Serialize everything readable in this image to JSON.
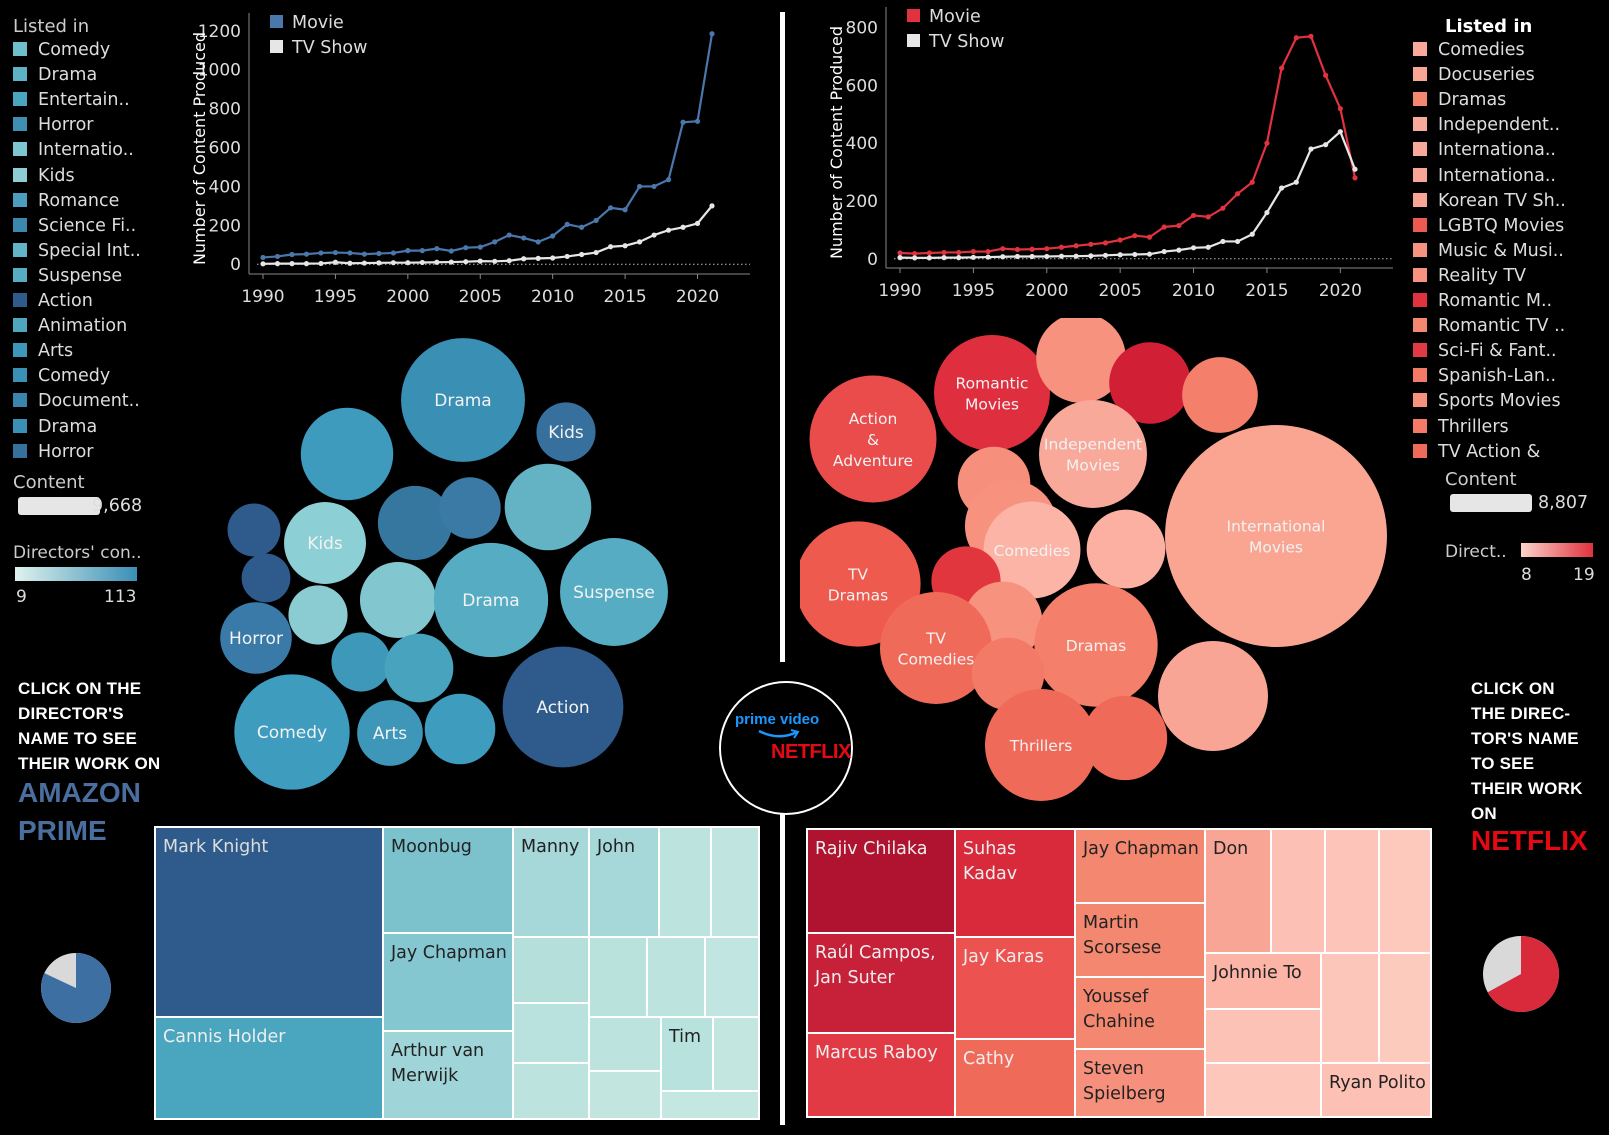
{
  "prime": {
    "legend_title": "Listed in",
    "legend_items": [
      {
        "label": "Comedy",
        "color": "#6ebfcb"
      },
      {
        "label": "Drama",
        "color": "#5db3c4"
      },
      {
        "label": "Entertain..",
        "color": "#4aa5bf"
      },
      {
        "label": "Horror",
        "color": "#3f8fb4"
      },
      {
        "label": "Internatio..",
        "color": "#7cc7cf"
      },
      {
        "label": "Kids",
        "color": "#8dcdd3"
      },
      {
        "label": "Romance",
        "color": "#4a9dbd"
      },
      {
        "label": "Science Fi..",
        "color": "#3c87ad"
      },
      {
        "label": "Special Int..",
        "color": "#62b5c6"
      },
      {
        "label": "Suspense",
        "color": "#56adc3"
      },
      {
        "label": "Action",
        "color": "#2e5b8c"
      },
      {
        "label": "Animation",
        "color": "#4fa7bf"
      },
      {
        "label": "Arts",
        "color": "#3e96b8"
      },
      {
        "label": "Comedy",
        "color": "#3a90b6"
      },
      {
        "label": "Document..",
        "color": "#3b84ad"
      },
      {
        "label": "Drama",
        "color": "#3b8fb5"
      },
      {
        "label": "Horror",
        "color": "#36719e"
      }
    ],
    "content_title": "Content",
    "content_value": "9,668",
    "directors_title": "Directors' con..",
    "directors_min": "9",
    "directors_max": "113",
    "cta_lines": [
      "CLICK ON THE",
      "DIRECTOR'S",
      "NAME TO SEE",
      "THEIR WORK ON"
    ],
    "brand_lines": [
      "AMAZON",
      "PRIME"
    ],
    "brand_color": "#4a6f9e",
    "accent": "#3e6fa3",
    "bubbles": [
      {
        "label": "Drama",
        "value": 113,
        "color": "#3a8fb5"
      },
      {
        "label": "",
        "value": 60,
        "color": "#3f9bbd"
      },
      {
        "label": "Kids",
        "value": 22,
        "color": "#37709c"
      },
      {
        "label": "Kids",
        "value": 46,
        "color": "#8ccfd5"
      },
      {
        "label": "",
        "value": 37,
        "color": "#36779f"
      },
      {
        "label": "",
        "value": 24,
        "color": "#3a7aa5"
      },
      {
        "label": "",
        "value": 52,
        "color": "#63b3c5"
      },
      {
        "label": "",
        "value": 17,
        "color": "#2e5b8c"
      },
      {
        "label": "",
        "value": 14,
        "color": "#2e5b8c"
      },
      {
        "label": "",
        "value": 22,
        "color": "#8bcbd2"
      },
      {
        "label": "",
        "value": 39,
        "color": "#82c6cf"
      },
      {
        "label": "Drama",
        "value": 95,
        "color": "#56adc3"
      },
      {
        "label": "Suspense",
        "value": 84,
        "color": "#56adc3"
      },
      {
        "label": "Horror",
        "value": 34,
        "color": "#3a7aa8"
      },
      {
        "label": "",
        "value": 22,
        "color": "#3e98ba"
      },
      {
        "label": "",
        "value": 31,
        "color": "#48a3bf"
      },
      {
        "label": "Comedy",
        "value": 97,
        "color": "#3e9cbf"
      },
      {
        "label": "Arts",
        "value": 28,
        "color": "#3e96b8"
      },
      {
        "label": "",
        "value": 33,
        "color": "#3e9cbf"
      },
      {
        "label": "Action",
        "value": 107,
        "color": "#2e5b8c"
      }
    ],
    "treemap": [
      {
        "label": "Mark Knight",
        "color": "#2e5b8c",
        "text": "#ddd"
      },
      {
        "label": "Cannis Holder",
        "color": "#4aa5bf",
        "text": "#eee"
      },
      {
        "label": "Moonbug",
        "color": "#7cc2cd",
        "text": "#222"
      },
      {
        "label": "Jay Chapman",
        "color": "#85c7d0",
        "text": "#222"
      },
      {
        "label": "Arthur van Merwijk",
        "color": "#9fd4d8",
        "text": "#222"
      },
      {
        "label": "Manny",
        "color": "#a6d7d9",
        "text": "#222"
      },
      {
        "label": "John",
        "color": "#a6d7d9",
        "text": "#222"
      },
      {
        "label": "Tim",
        "color": "#b8e2de",
        "text": "#222"
      }
    ],
    "pie": {
      "share": 0.82,
      "color": "#3e6fa3",
      "rest": "#d9d9d9"
    }
  },
  "netflix": {
    "legend_title": "Listed in",
    "legend_items": [
      {
        "label": "Comedies",
        "color": "#f9a99a"
      },
      {
        "label": "Docuseries",
        "color": "#f8a596"
      },
      {
        "label": "Dramas",
        "color": "#f4876f"
      },
      {
        "label": "Independent..",
        "color": "#f9a99a"
      },
      {
        "label": "Internationa..",
        "color": "#f9a99a"
      },
      {
        "label": "Internationa..",
        "color": "#f8a596"
      },
      {
        "label": "Korean TV Sh..",
        "color": "#f8a596"
      },
      {
        "label": "LGBTQ Movies",
        "color": "#ef5a50"
      },
      {
        "label": "Music & Musi..",
        "color": "#f7927e"
      },
      {
        "label": "Reality TV",
        "color": "#f7927e"
      },
      {
        "label": "Romantic M..",
        "color": "#e0323f"
      },
      {
        "label": "Romantic TV ..",
        "color": "#f4876f"
      },
      {
        "label": "Sci-Fi & Fant..",
        "color": "#e23a45"
      },
      {
        "label": "Spanish-Lan..",
        "color": "#f27a66"
      },
      {
        "label": "Sports Movies",
        "color": "#f7927e"
      },
      {
        "label": "Thrillers",
        "color": "#f27a66"
      },
      {
        "label": "TV Action &",
        "color": "#f06a5a"
      }
    ],
    "content_title": "Content",
    "content_value": "8,807",
    "directors_title": "Direct..",
    "directors_min": "8",
    "directors_max": "19",
    "cta_lines": [
      "CLICK ON",
      "THE DIREC-",
      "TOR'S NAME",
      "TO SEE",
      "THEIR WORK",
      "ON"
    ],
    "brand_lines": [
      "NETFLIX"
    ],
    "brand_color": "#e50914",
    "accent": "#e0323f",
    "bubbles": [
      {
        "label": "Action & Adventure",
        "value": 17,
        "color": "#ea4b4b"
      },
      {
        "label": "Romantic Movies",
        "value": 16,
        "color": "#df2e3e"
      },
      {
        "label": "",
        "value": 12,
        "color": "#f7927e"
      },
      {
        "label": "",
        "value": 19,
        "color": "#d11f35"
      },
      {
        "label": "",
        "value": 10,
        "color": "#f4806c"
      },
      {
        "label": "Independent Movies",
        "value": 14,
        "color": "#f9a99a"
      },
      {
        "label": "",
        "value": 9,
        "color": "#f6907c"
      },
      {
        "label": "",
        "value": 12,
        "color": "#f7927e"
      },
      {
        "label": "International Movies",
        "value": 8,
        "color": "#f9a592"
      },
      {
        "label": "Comedies",
        "value": 13,
        "color": "#fbb4a6"
      },
      {
        "label": "",
        "value": 10,
        "color": "#fbb0a2"
      },
      {
        "label": "TV Dramas",
        "value": 15,
        "color": "#ee5a4e"
      },
      {
        "label": "",
        "value": 17,
        "color": "#e2363f"
      },
      {
        "label": "",
        "value": 10,
        "color": "#f7927e"
      },
      {
        "label": "TV Comedies",
        "value": 14,
        "color": "#f06a5a"
      },
      {
        "label": "Dramas",
        "value": 12,
        "color": "#f4806c"
      },
      {
        "label": "",
        "value": 11,
        "color": "#f27a66"
      },
      {
        "label": "",
        "value": 9,
        "color": "#f8a596"
      },
      {
        "label": "Thrillers",
        "value": 12,
        "color": "#f06a5a"
      },
      {
        "label": "",
        "value": 11,
        "color": "#f06a5a"
      }
    ],
    "treemap": [
      {
        "label": "Rajiv Chilaka",
        "color": "#b0132f",
        "text": "#eee"
      },
      {
        "label": "Suhas Kadav",
        "color": "#d92a3c",
        "text": "#eee"
      },
      {
        "label": "Raúl Campos, Jan Suter",
        "color": "#c7213a",
        "text": "#eee"
      },
      {
        "label": "Jay Karas",
        "color": "#ec5250",
        "text": "#eee"
      },
      {
        "label": "Marcus Raboy",
        "color": "#e23a45",
        "text": "#eee"
      },
      {
        "label": "Cathy",
        "color": "#f06a5a",
        "text": "#eee"
      },
      {
        "label": "Jay Chapman",
        "color": "#f4876f",
        "text": "#222"
      },
      {
        "label": "Martin Scorsese",
        "color": "#f4876f",
        "text": "#222"
      },
      {
        "label": "Youssef Chahine",
        "color": "#f4876f",
        "text": "#222"
      },
      {
        "label": "Steven Spielberg",
        "color": "#f6907c",
        "text": "#222"
      },
      {
        "label": "Don",
        "color": "#f8a596",
        "text": "#222"
      },
      {
        "label": "Johnnie To",
        "color": "#fbb4a6",
        "text": "#222"
      },
      {
        "label": "Ryan Polito",
        "color": "#fcc0b4",
        "text": "#222"
      }
    ],
    "pie": {
      "share": 0.67,
      "color": "#d92a3c",
      "rest": "#d9d9d9"
    }
  },
  "logo": {
    "prime_text": "prime video",
    "netflix_text": "NETFLIX"
  },
  "chart_data": [
    {
      "type": "line",
      "ylabel": "Number of Content Produced",
      "x": [
        1990,
        1991,
        1992,
        1993,
        1994,
        1995,
        1996,
        1997,
        1998,
        1999,
        2000,
        2001,
        2002,
        2003,
        2004,
        2005,
        2006,
        2007,
        2008,
        2009,
        2010,
        2011,
        2012,
        2013,
        2014,
        2015,
        2016,
        2017,
        2018,
        2019,
        2020,
        2021
      ],
      "xticks": [
        1990,
        1995,
        2000,
        2005,
        2010,
        2015,
        2020
      ],
      "yticks": [
        0,
        200,
        400,
        600,
        800,
        1000,
        1200
      ],
      "ylim": [
        -40,
        1230
      ],
      "legend_position": "top-left",
      "series": [
        {
          "name": "Movie",
          "color": "#4a78ad",
          "values": [
            35,
            40,
            50,
            52,
            58,
            60,
            58,
            52,
            55,
            58,
            70,
            70,
            80,
            68,
            85,
            88,
            115,
            150,
            135,
            115,
            145,
            205,
            190,
            225,
            290,
            280,
            400,
            400,
            435,
            730,
            735,
            1185
          ]
        },
        {
          "name": "TV Show",
          "color": "#e6e6e6",
          "values": [
            2,
            3,
            3,
            3,
            4,
            10,
            5,
            6,
            7,
            8,
            8,
            9,
            10,
            11,
            13,
            16,
            15,
            18,
            28,
            30,
            32,
            40,
            50,
            60,
            90,
            95,
            115,
            150,
            175,
            190,
            210,
            300
          ]
        }
      ]
    },
    {
      "type": "line",
      "ylabel": "Number of Content Produced",
      "x": [
        1990,
        1991,
        1992,
        1993,
        1994,
        1995,
        1996,
        1997,
        1998,
        1999,
        2000,
        2001,
        2002,
        2003,
        2004,
        2005,
        2006,
        2007,
        2008,
        2009,
        2010,
        2011,
        2012,
        2013,
        2014,
        2015,
        2016,
        2017,
        2018,
        2019,
        2020,
        2021
      ],
      "xticks": [
        1990,
        1995,
        2000,
        2005,
        2010,
        2015,
        2020
      ],
      "yticks": [
        0,
        200,
        400,
        600,
        800
      ],
      "ylim": [
        -25,
        830
      ],
      "legend_position": "top-left",
      "series": [
        {
          "name": "Movie",
          "color": "#e0323f",
          "values": [
            20,
            18,
            20,
            22,
            22,
            25,
            25,
            35,
            32,
            33,
            35,
            40,
            45,
            50,
            55,
            65,
            80,
            75,
            110,
            115,
            150,
            145,
            175,
            225,
            265,
            400,
            660,
            765,
            770,
            635,
            520,
            280
          ]
        },
        {
          "name": "TV Show",
          "color": "#e6e6e6",
          "values": [
            4,
            3,
            3,
            4,
            4,
            5,
            6,
            7,
            8,
            8,
            8,
            9,
            9,
            10,
            12,
            14,
            15,
            16,
            25,
            30,
            38,
            40,
            60,
            60,
            85,
            160,
            245,
            265,
            380,
            395,
            440,
            310
          ]
        }
      ]
    }
  ]
}
